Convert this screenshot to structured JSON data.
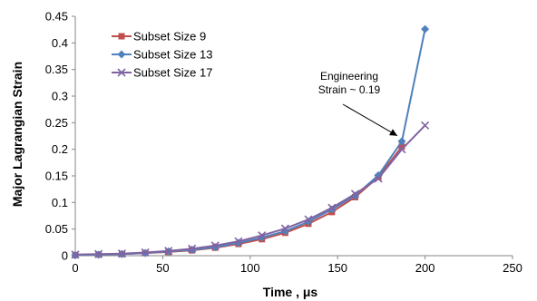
{
  "chart_data": {
    "type": "line",
    "title": "",
    "xlabel": "Time , μs",
    "ylabel": "Major Lagrangian Strain",
    "xlim": [
      0,
      250
    ],
    "ylim": [
      0,
      0.45
    ],
    "x_ticks": [
      "0",
      "50",
      "100",
      "150",
      "200",
      "250"
    ],
    "y_ticks": [
      "0",
      "0.05",
      "0.1",
      "0.15",
      "0.2",
      "0.25",
      "0.3",
      "0.35",
      "0.4",
      "0.45"
    ],
    "grid": false,
    "legend_position": "top-left",
    "series": [
      {
        "name": "Subset Size 9",
        "color": "#c0504d",
        "marker": "square",
        "x": [
          0,
          13.3,
          26.7,
          40,
          53.3,
          66.7,
          80,
          93.3,
          106.7,
          120,
          133.3,
          146.7,
          160,
          173.3,
          186.7
        ],
        "y": [
          0.001,
          0.002,
          0.003,
          0.005,
          0.007,
          0.01,
          0.015,
          0.022,
          0.031,
          0.043,
          0.06,
          0.082,
          0.11,
          0.148,
          0.205
        ]
      },
      {
        "name": "Subset Size 13",
        "color": "#4f81bd",
        "marker": "diamond",
        "x": [
          0,
          13.3,
          26.7,
          40,
          53.3,
          66.7,
          80,
          93.3,
          106.7,
          120,
          133.3,
          146.7,
          160,
          173.3,
          186.7,
          200
        ],
        "y": [
          0.001,
          0.002,
          0.003,
          0.005,
          0.008,
          0.011,
          0.016,
          0.024,
          0.034,
          0.046,
          0.064,
          0.087,
          0.113,
          0.151,
          0.215,
          0.426
        ]
      },
      {
        "name": "Subset Size 17",
        "color": "#8064a2",
        "marker": "x",
        "x": [
          0,
          13.3,
          26.7,
          40,
          53.3,
          66.7,
          80,
          93.3,
          106.7,
          120,
          133.3,
          146.7,
          160,
          173.3,
          186.7,
          200
        ],
        "y": [
          0.002,
          0.003,
          0.004,
          0.006,
          0.009,
          0.013,
          0.019,
          0.027,
          0.038,
          0.051,
          0.068,
          0.09,
          0.116,
          0.145,
          0.2,
          0.245
        ]
      }
    ],
    "annotations": [
      {
        "text_lines": [
          "Engineering",
          "Strain ~ 0.19"
        ],
        "arrow_to": [
          186.7,
          0.205
        ]
      }
    ]
  }
}
